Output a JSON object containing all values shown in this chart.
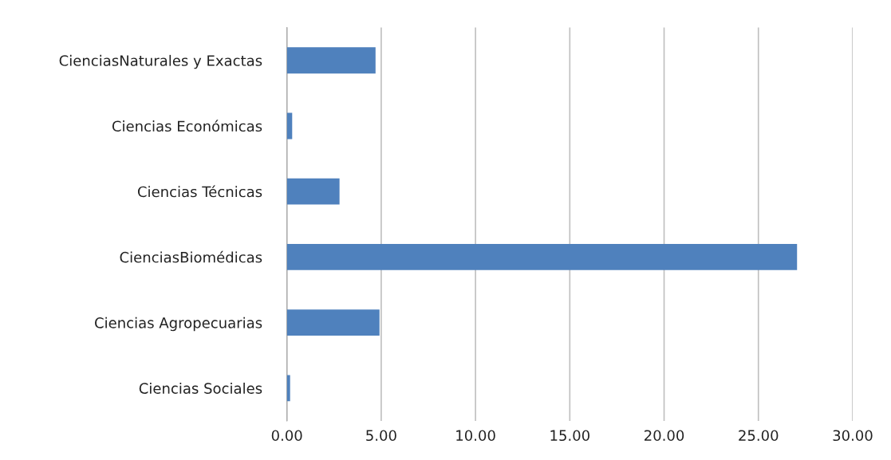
{
  "chart_data": {
    "type": "bar",
    "orientation": "horizontal",
    "categories": [
      "CienciasNaturales y Exactas",
      "Ciencias Económicas",
      "Ciencias Técnicas",
      "CienciasBiomédicas",
      "Ciencias Agropecuarias",
      "Ciencias Sociales"
    ],
    "values": [
      4.7,
      0.28,
      2.79,
      27.05,
      4.91,
      0.17
    ],
    "color": "#4f81bd",
    "xlim": [
      0,
      30
    ],
    "xticks": [
      {
        "value": 0,
        "label": "0.00"
      },
      {
        "value": 5,
        "label": "5.00"
      },
      {
        "value": 10,
        "label": "10.00"
      },
      {
        "value": 15,
        "label": "15.00"
      },
      {
        "value": 20,
        "label": "20.00"
      },
      {
        "value": 25,
        "label": "25.00"
      },
      {
        "value": 30,
        "label": "30.00"
      }
    ],
    "grid": "x",
    "legend": false
  }
}
